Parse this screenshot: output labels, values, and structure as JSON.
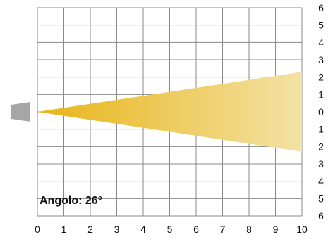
{
  "chart_data": {
    "type": "beam-diagram",
    "x_ticks": [
      "0",
      "1",
      "2",
      "3",
      "4",
      "5",
      "6",
      "7",
      "8",
      "9",
      "10"
    ],
    "y_ticks_right": [
      "6",
      "5",
      "4",
      "3",
      "2",
      "1",
      "0",
      "1",
      "2",
      "3",
      "4",
      "5",
      "6"
    ],
    "x_range": [
      0,
      10
    ],
    "y_range": [
      -6,
      6
    ],
    "beam": {
      "origin": [
        0,
        0
      ],
      "end_distance": 10,
      "half_width_at_end": 2.3,
      "angle_deg": 26
    },
    "angle_label": "Angolo: 26°",
    "grid": true
  },
  "colors": {
    "beam_start": "#e8b417",
    "beam_end": "#f3e2a4",
    "grid": "#8a8a8a",
    "emitter": "#a6a6a6",
    "text": "#111111"
  },
  "icons": {
    "emitter": "light-emitter-icon"
  }
}
